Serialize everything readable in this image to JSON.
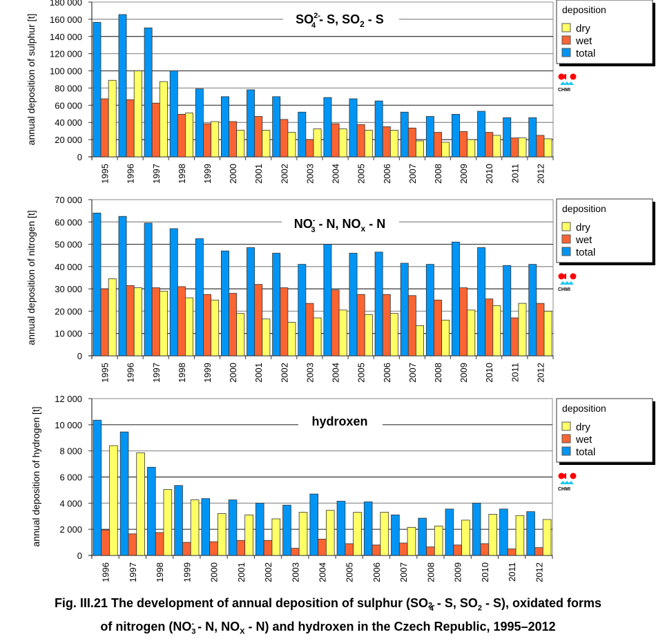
{
  "chart_data": [
    {
      "type": "bar",
      "title": "SO4(2-) - S, SO2 - S",
      "title_parts": {
        "a": "SO",
        "a_sub": "4",
        "a_sup": "2-",
        "b": " - S, SO",
        "b_sub": "2",
        "c": " - S"
      },
      "xlabel": "",
      "ylabel": "annual deposition of sulphur [t]",
      "ylim": [
        0,
        180000
      ],
      "yticks": [
        0,
        20000,
        40000,
        60000,
        80000,
        100000,
        120000,
        140000,
        160000,
        180000
      ],
      "ytick_labels": [
        "0",
        "20 000",
        "40 000",
        "60 000",
        "80 000",
        "100 000",
        "120 000",
        "140 000",
        "160 000",
        "180 000"
      ],
      "grid": true,
      "legend_position": "right",
      "legend_title": "deposition",
      "categories": [
        "1995",
        "1996",
        "1997",
        "1998",
        "1999",
        "2000",
        "2001",
        "2002",
        "2003",
        "2004",
        "2005",
        "2006",
        "2007",
        "2008",
        "2009",
        "2010",
        "2011",
        "2012"
      ],
      "series": [
        {
          "name": "total",
          "color": "#0095f4",
          "values": [
            156500,
            165500,
            150000,
            100000,
            79000,
            70000,
            78000,
            70000,
            52000,
            69000,
            67500,
            65000,
            52000,
            47000,
            49500,
            53000,
            45500,
            45500
          ]
        },
        {
          "name": "wet",
          "color": "#fa6432",
          "values": [
            67500,
            66500,
            62500,
            49500,
            38500,
            41000,
            47000,
            43500,
            20000,
            38500,
            37500,
            35000,
            33500,
            28500,
            29500,
            28500,
            22000,
            25000
          ]
        },
        {
          "name": "dry",
          "color": "#ffff66",
          "values": [
            89000,
            100000,
            87500,
            51000,
            41000,
            31000,
            31000,
            28500,
            32500,
            32500,
            31000,
            31000,
            18500,
            17000,
            20000,
            25000,
            22000,
            21000
          ]
        }
      ]
    },
    {
      "type": "bar",
      "title": "NO3(-) - N, NOx - N",
      "title_parts": {
        "a": "NO",
        "a_sub": "3",
        "a_sup": "-",
        "b": " - N, NO",
        "b_sub": "x",
        "c": " - N"
      },
      "xlabel": "",
      "ylabel": "annual deposition of nitrogen [t]",
      "ylim": [
        0,
        70000
      ],
      "yticks": [
        0,
        10000,
        20000,
        30000,
        40000,
        50000,
        60000,
        70000
      ],
      "ytick_labels": [
        "0",
        "10 000",
        "20 000",
        "30 000",
        "40 000",
        "50 000",
        "60 000",
        "70 000"
      ],
      "grid": true,
      "legend_position": "right",
      "legend_title": "deposition",
      "categories": [
        "1995",
        "1996",
        "1997",
        "1998",
        "1999",
        "2000",
        "2001",
        "2002",
        "2003",
        "2004",
        "2005",
        "2006",
        "2007",
        "2008",
        "2009",
        "2010",
        "2011",
        "2012"
      ],
      "series": [
        {
          "name": "total",
          "color": "#0095f4",
          "values": [
            64000,
            62500,
            59500,
            57000,
            52500,
            47000,
            48500,
            46000,
            41000,
            50000,
            46000,
            46500,
            41500,
            41000,
            51000,
            48500,
            40500,
            41000
          ]
        },
        {
          "name": "wet",
          "color": "#fa6432",
          "values": [
            30000,
            31500,
            30500,
            31000,
            27500,
            28000,
            32000,
            30500,
            23500,
            29500,
            27500,
            27500,
            27000,
            25000,
            30500,
            25500,
            17000,
            23500
          ]
        },
        {
          "name": "dry",
          "color": "#ffff66",
          "values": [
            34500,
            30500,
            29000,
            26000,
            25000,
            19000,
            16500,
            15000,
            17000,
            20500,
            18500,
            19000,
            13500,
            16000,
            20500,
            22500,
            23500,
            20000
          ]
        }
      ]
    },
    {
      "type": "bar",
      "title": "hydroxen",
      "xlabel": "",
      "ylabel": "annual deposition of hydrogen [t]",
      "ylim": [
        0,
        12000
      ],
      "yticks": [
        0,
        2000,
        4000,
        6000,
        8000,
        10000,
        12000
      ],
      "ytick_labels": [
        "0",
        "2 000",
        "4 000",
        "6 000",
        "8 000",
        "10 000",
        "12 000"
      ],
      "grid": true,
      "legend_position": "right",
      "legend_title": "deposition",
      "categories": [
        "1996",
        "1997",
        "1998",
        "1999",
        "2000",
        "2001",
        "2002",
        "2003",
        "2004",
        "2005",
        "2006",
        "2007",
        "2008",
        "2009",
        "2010",
        "2011",
        "2012"
      ],
      "series": [
        {
          "name": "total",
          "color": "#0095f4",
          "values": [
            10350,
            9450,
            6750,
            5350,
            4350,
            4250,
            4000,
            3850,
            4700,
            4150,
            4100,
            3100,
            2850,
            3550,
            4000,
            3550,
            3350
          ]
        },
        {
          "name": "wet",
          "color": "#fa6432",
          "values": [
            1950,
            1650,
            1750,
            1000,
            1050,
            1150,
            1150,
            550,
            1250,
            900,
            800,
            950,
            650,
            800,
            900,
            500,
            600
          ]
        },
        {
          "name": "dry",
          "color": "#ffff66",
          "values": [
            8400,
            7850,
            5050,
            4250,
            3200,
            3100,
            2800,
            3300,
            3450,
            3300,
            3300,
            2150,
            2250,
            2700,
            3150,
            3050,
            2750
          ]
        }
      ]
    }
  ],
  "legend": {
    "title": "deposition",
    "items": [
      {
        "label": "dry",
        "color": "#ffff66"
      },
      {
        "label": "wet",
        "color": "#fa6432"
      },
      {
        "label": "total",
        "color": "#0095f4"
      }
    ]
  },
  "logo": {
    "text": "CHMI"
  },
  "caption": {
    "line1_a": "Fig. III.21  The development of annual deposition of sulphur (SO",
    "line1_sub": "4",
    "line1_sup": "2-",
    "line1_b": " - S, SO",
    "line1_sub2": "2",
    "line1_c": " - S), oxidated forms",
    "line2_a": "of nitrogen (NO",
    "line2_sub": "3",
    "line2_sup": "-",
    "line2_b": " - N, NO",
    "line2_sub2": "X",
    "line2_c": " - N) and hydroxen in the Czech Republic, 1995–2012"
  }
}
